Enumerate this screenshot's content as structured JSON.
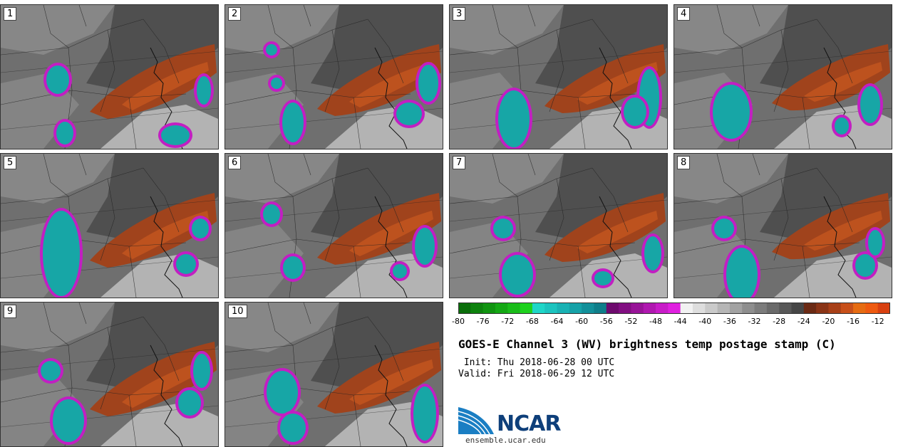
{
  "panels": [
    {
      "label": "1",
      "variant": 0
    },
    {
      "label": "2",
      "variant": 1
    },
    {
      "label": "3",
      "variant": 2
    },
    {
      "label": "4",
      "variant": 3
    },
    {
      "label": "5",
      "variant": 4
    },
    {
      "label": "6",
      "variant": 5
    },
    {
      "label": "7",
      "variant": 6
    },
    {
      "label": "8",
      "variant": 7
    },
    {
      "label": "9",
      "variant": 8
    },
    {
      "label": "10",
      "variant": 9
    }
  ],
  "colorbar": {
    "tick_labels": [
      "-80",
      "-76",
      "-72",
      "-68",
      "-64",
      "-60",
      "-56",
      "-52",
      "-48",
      "-44",
      "-40",
      "-36",
      "-32",
      "-28",
      "-24",
      "-20",
      "-16",
      "-12"
    ],
    "tick_values": [
      -80,
      -76,
      -72,
      -68,
      -64,
      -60,
      -56,
      -52,
      -48,
      -44,
      -40,
      -36,
      -32,
      -28,
      -24,
      -20,
      -16,
      -12
    ],
    "range": [
      -80,
      -10
    ],
    "bins": [
      {
        "from": -80,
        "to": -78,
        "color": "#0a6e0a"
      },
      {
        "from": -78,
        "to": -76,
        "color": "#0d820d"
      },
      {
        "from": -76,
        "to": -74,
        "color": "#109410"
      },
      {
        "from": -74,
        "to": -72,
        "color": "#14a814"
      },
      {
        "from": -72,
        "to": -70,
        "color": "#19bc19"
      },
      {
        "from": -70,
        "to": -68,
        "color": "#1ed21e"
      },
      {
        "from": -68,
        "to": -66,
        "color": "#1fd6c8"
      },
      {
        "from": -66,
        "to": -64,
        "color": "#1cc4bf"
      },
      {
        "from": -64,
        "to": -62,
        "color": "#19b2b4"
      },
      {
        "from": -62,
        "to": -60,
        "color": "#16a2a8"
      },
      {
        "from": -60,
        "to": -58,
        "color": "#13909a"
      },
      {
        "from": -58,
        "to": -56,
        "color": "#0f7e8a"
      },
      {
        "from": -56,
        "to": -54,
        "color": "#6e0a6e"
      },
      {
        "from": -54,
        "to": -52,
        "color": "#820f82"
      },
      {
        "from": -52,
        "to": -50,
        "color": "#981498"
      },
      {
        "from": -50,
        "to": -48,
        "color": "#b018b0"
      },
      {
        "from": -48,
        "to": -46,
        "color": "#c81cc8"
      },
      {
        "from": -46,
        "to": -44,
        "color": "#e020e0"
      },
      {
        "from": -44,
        "to": -42,
        "color": "#f2f2f2"
      },
      {
        "from": -42,
        "to": -40,
        "color": "#dedede"
      },
      {
        "from": -40,
        "to": -38,
        "color": "#cacaca"
      },
      {
        "from": -38,
        "to": -36,
        "color": "#b6b6b6"
      },
      {
        "from": -36,
        "to": -34,
        "color": "#a2a2a2"
      },
      {
        "from": -34,
        "to": -32,
        "color": "#8e8e8e"
      },
      {
        "from": -32,
        "to": -30,
        "color": "#7c7c7c"
      },
      {
        "from": -30,
        "to": -28,
        "color": "#6a6a6a"
      },
      {
        "from": -28,
        "to": -26,
        "color": "#585858"
      },
      {
        "from": -26,
        "to": -24,
        "color": "#464646"
      },
      {
        "from": -24,
        "to": -22,
        "color": "#6b2a14"
      },
      {
        "from": -22,
        "to": -20,
        "color": "#8a3416"
      },
      {
        "from": -20,
        "to": -18,
        "color": "#a84018"
      },
      {
        "from": -18,
        "to": -16,
        "color": "#c8501a"
      },
      {
        "from": -16,
        "to": -14,
        "color": "#e66c12"
      },
      {
        "from": -14,
        "to": -12,
        "color": "#ee5a10"
      },
      {
        "from": -12,
        "to": -10,
        "color": "#d84010"
      }
    ]
  },
  "title": "GOES-E Channel 3 (WV) brightness temp postage stamp (C)",
  "init_line": " Init: Thu 2018-06-28 00 UTC",
  "valid_line": "Valid: Fri 2018-06-29 12 UTC",
  "logo_text": "NCAR",
  "site": "ensemble.ucar.edu",
  "colors": {
    "background_gray": "#6f6f6f",
    "dark_gray": "#4a4a4a",
    "light_gray": "#9a9a9a",
    "orange": "#a0431c",
    "orange_light": "#c4561f",
    "magenta": "#c21fc2",
    "cyan": "#17a6a6",
    "ncar_blue": "#0e3f7a"
  }
}
